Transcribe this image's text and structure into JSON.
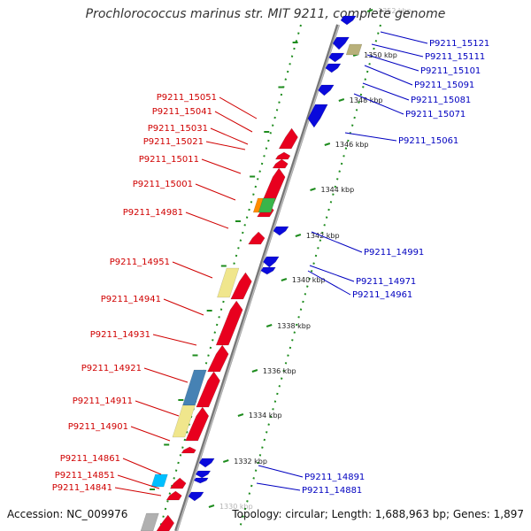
{
  "title": "Prochlorococcus marinus str. MIT 9211, complete genome",
  "accession": "Accession: NC_009976",
  "summary": "Topology: circular; Length: 1,688,963 bp; Genes: 1,897",
  "colors": {
    "forward": "#e8001e",
    "reverse": "#0a0adc",
    "backbone": "#888888",
    "tick": "#1e8c1e",
    "label_forward": "#d00000",
    "label_reverse": "#0000c0"
  },
  "scale_labels": [
    "1352 kbp",
    "1350 kbp",
    "1348 kbp",
    "1346 kbp",
    "1344 kbp",
    "1342 kbp",
    "1340 kbp",
    "1338 kbp",
    "1336 kbp",
    "1334 kbp",
    "1332 kbp",
    "1330 kbp"
  ],
  "forward_labels": [
    "P9211_15051",
    "P9211_15041",
    "P9211_15031",
    "P9211_15021",
    "P9211_15011",
    "P9211_15001",
    "P9211_14981",
    "P9211_14951",
    "P9211_14941",
    "P9211_14931",
    "P9211_14921",
    "P9211_14911",
    "P9211_14901",
    "P9211_14861",
    "P9211_14851",
    "P9211_14841"
  ],
  "reverse_labels": [
    "P9211_15121",
    "P9211_15111",
    "P9211_15101",
    "P9211_15091",
    "P9211_15081",
    "P9211_15071",
    "P9211_15061",
    "P9211_14991",
    "P9211_14971",
    "P9211_14961",
    "P9211_14891",
    "P9211_14881"
  ]
}
